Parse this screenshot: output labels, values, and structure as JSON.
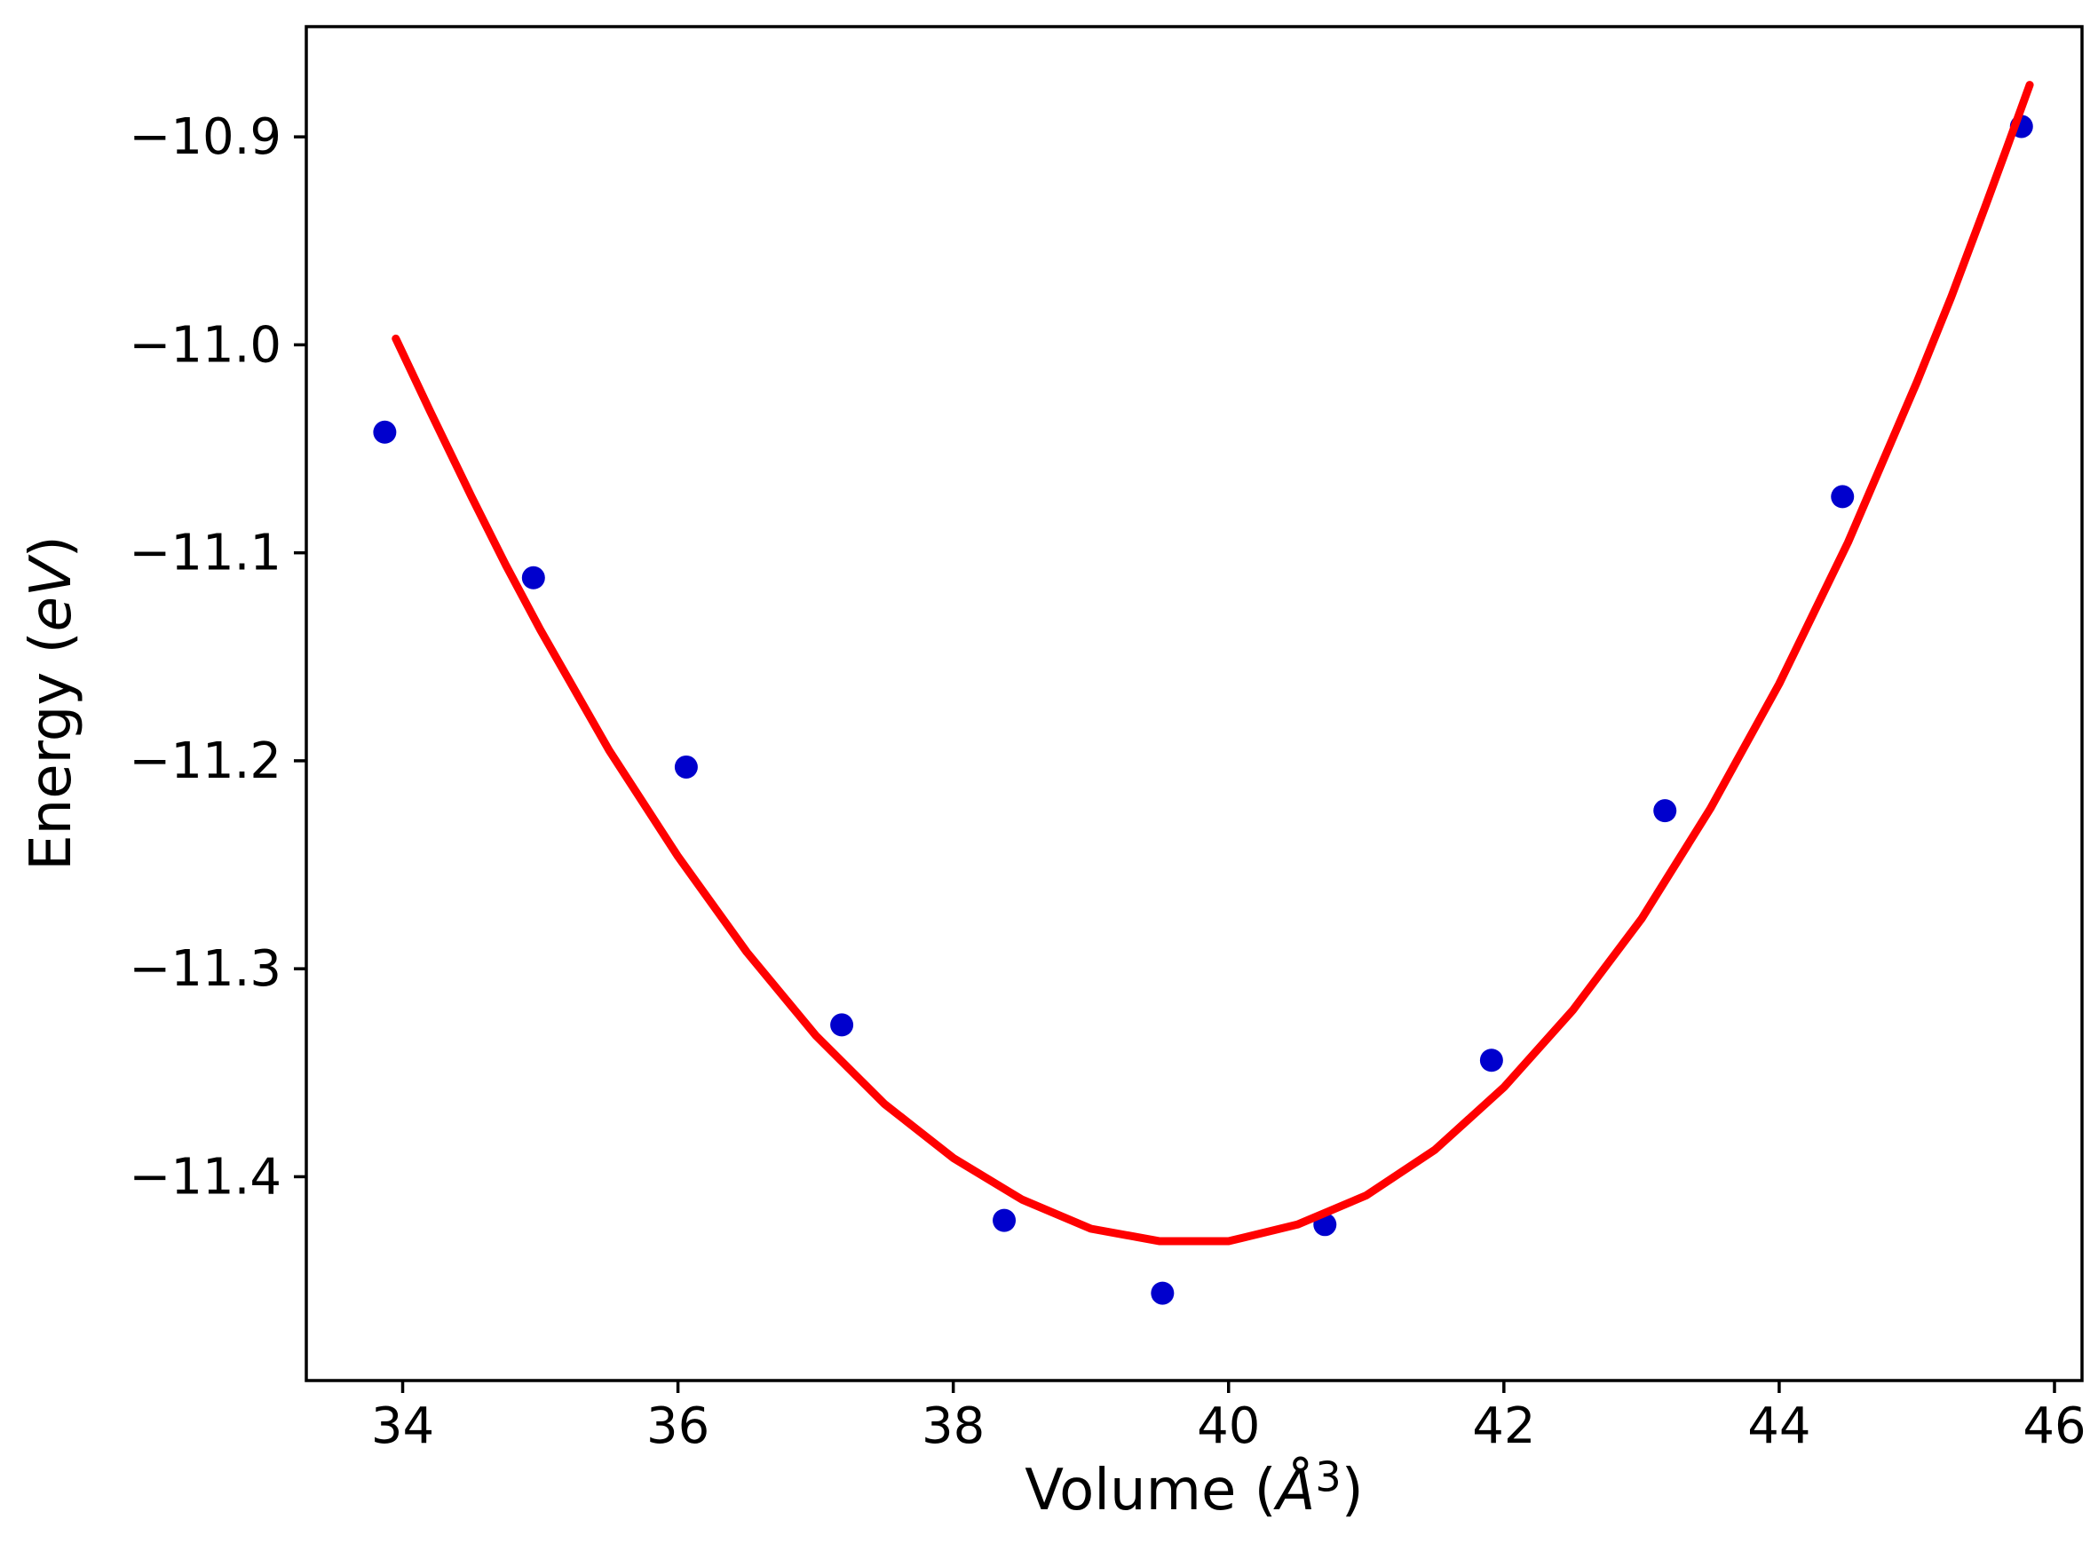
{
  "figure": {
    "background": "#ffffff",
    "border_color": "#000000"
  },
  "chart_data": {
    "type": "scatter",
    "xlabel": "Volume (Å³)",
    "ylabel": "Energy (eV)",
    "xlabel_parts": {
      "pre": "Volume (",
      "symbol": "Å",
      "sup": "3",
      "post": ")"
    },
    "ylabel_parts": {
      "pre": "Energy (",
      "symbol": "eV",
      "post": ")"
    },
    "xlim": [
      33.3,
      46.2
    ],
    "ylim": [
      -11.498,
      -10.847
    ],
    "grid": false,
    "legend": "none",
    "x_ticks": {
      "values": [
        34,
        36,
        38,
        40,
        42,
        44,
        46
      ],
      "labels": [
        "34",
        "36",
        "38",
        "40",
        "42",
        "44",
        "46"
      ]
    },
    "y_ticks": {
      "values": [
        -10.9,
        -11.0,
        -11.1,
        -11.2,
        -11.3,
        -11.4
      ],
      "labels": [
        "−10.9",
        "−11.0",
        "−11.1",
        "−11.2",
        "−11.3",
        "−11.4"
      ]
    },
    "series": [
      {
        "name": "energy-data-points",
        "kind": "scatter",
        "color": "#0000cd",
        "marker": "circle",
        "marker_radius": 13,
        "points": [
          [
            33.87,
            -11.042
          ],
          [
            34.95,
            -11.112
          ],
          [
            36.06,
            -11.203
          ],
          [
            37.19,
            -11.327
          ],
          [
            38.37,
            -11.421
          ],
          [
            39.52,
            -11.456
          ],
          [
            40.7,
            -11.423
          ],
          [
            41.91,
            -11.344
          ],
          [
            43.17,
            -11.224
          ],
          [
            44.46,
            -11.073
          ],
          [
            45.76,
            -10.895
          ]
        ]
      },
      {
        "name": "eos-fit-curve",
        "kind": "line",
        "color": "#ff0000",
        "line_width": 9,
        "points": [
          [
            33.95,
            -10.997
          ],
          [
            34.2,
            -11.032
          ],
          [
            34.5,
            -11.073
          ],
          [
            34.75,
            -11.106
          ],
          [
            35.0,
            -11.137
          ],
          [
            35.5,
            -11.195
          ],
          [
            36.0,
            -11.246
          ],
          [
            36.5,
            -11.292
          ],
          [
            37.0,
            -11.332
          ],
          [
            37.5,
            -11.365
          ],
          [
            38.0,
            -11.391
          ],
          [
            38.5,
            -11.411
          ],
          [
            39.0,
            -11.425
          ],
          [
            39.5,
            -11.431
          ],
          [
            40.0,
            -11.431
          ],
          [
            40.5,
            -11.423
          ],
          [
            41.0,
            -11.409
          ],
          [
            41.5,
            -11.387
          ],
          [
            42.0,
            -11.357
          ],
          [
            42.5,
            -11.32
          ],
          [
            43.0,
            -11.276
          ],
          [
            43.5,
            -11.223
          ],
          [
            44.0,
            -11.163
          ],
          [
            44.5,
            -11.095
          ],
          [
            45.0,
            -11.018
          ],
          [
            45.25,
            -10.977
          ],
          [
            45.5,
            -10.933
          ],
          [
            45.65,
            -10.906
          ],
          [
            45.82,
            -10.875
          ]
        ]
      }
    ]
  }
}
